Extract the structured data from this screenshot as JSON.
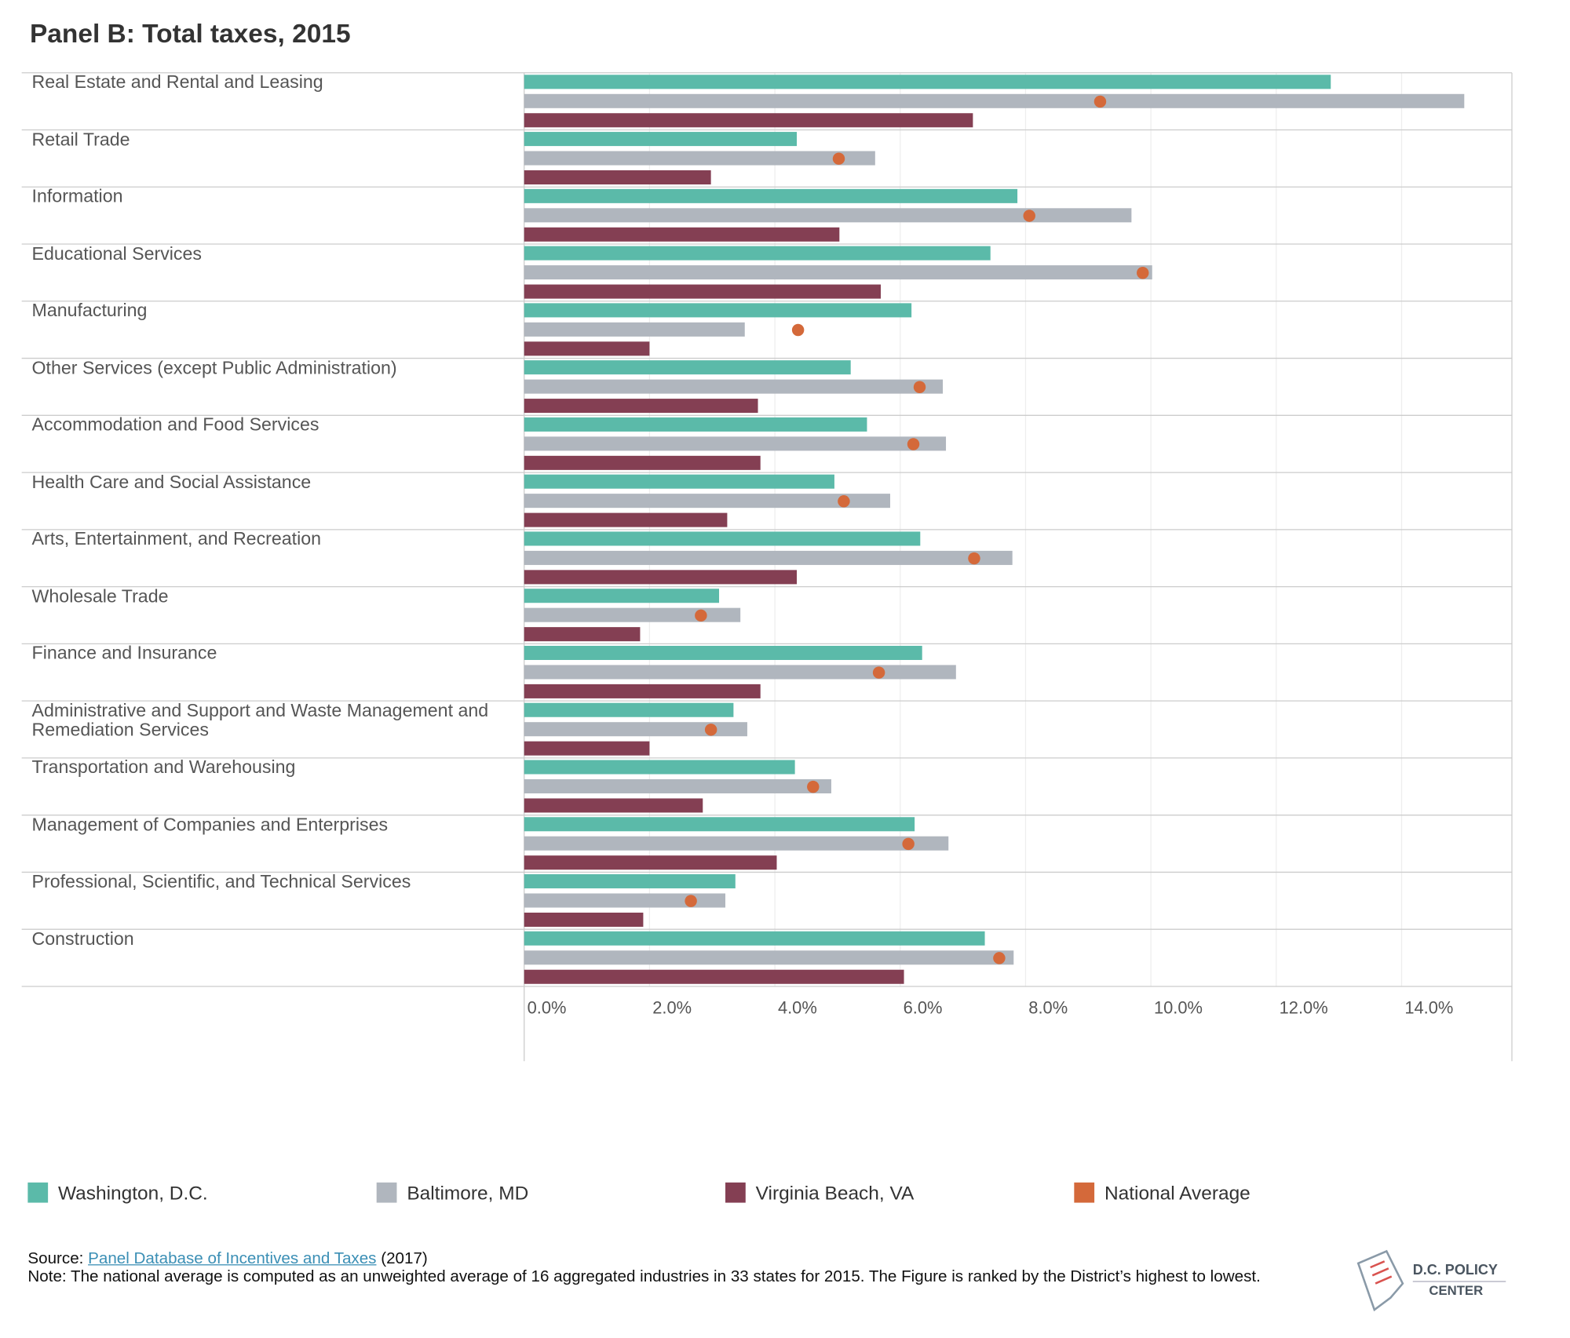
{
  "chart_data": {
    "type": "bar",
    "orientation": "horizontal",
    "title": "Panel B: Total taxes, 2015",
    "categories": [
      "Real Estate and Rental and Leasing",
      "Retail Trade",
      "Information",
      "Educational Services",
      "Manufacturing",
      "Other Services (except Public Administration)",
      "Accommodation and Food Services",
      "Health Care and Social Assistance",
      "Arts, Entertainment, and Recreation",
      "Wholesale Trade",
      "Finance and Insurance",
      "Administrative and Support and Waste Management and Remediation Services",
      "Transportation and Warehousing",
      "Management of Companies and Enterprises",
      "Professional, Scientific, and Technical Services",
      "Construction"
    ],
    "series": [
      {
        "name": "Washington, D.C.",
        "color": "#5bbaa9",
        "values": [
          12.87,
          4.35,
          7.87,
          7.44,
          6.18,
          5.21,
          5.47,
          4.95,
          6.32,
          3.11,
          6.35,
          3.34,
          4.32,
          6.23,
          3.37,
          7.35
        ]
      },
      {
        "name": "Baltimore, MD",
        "color": "#b0b6be",
        "values": [
          15.0,
          5.6,
          9.69,
          10.02,
          3.52,
          6.68,
          6.73,
          5.84,
          7.79,
          3.45,
          6.89,
          3.56,
          4.9,
          6.77,
          3.21,
          7.81
        ]
      },
      {
        "name": "Virginia Beach, VA",
        "color": "#843f53",
        "values": [
          7.16,
          2.98,
          5.03,
          5.69,
          2.0,
          3.73,
          3.77,
          3.24,
          4.35,
          1.85,
          3.77,
          2.0,
          2.85,
          4.03,
          1.9,
          6.06
        ]
      },
      {
        "name": "National Average",
        "color": "#d4693a",
        "style": "dot",
        "values": [
          9.19,
          5.02,
          8.06,
          9.87,
          4.37,
          6.31,
          6.21,
          5.1,
          7.18,
          2.82,
          5.66,
          2.98,
          4.61,
          6.13,
          2.66,
          7.58
        ]
      }
    ],
    "xlim": [
      0,
      15.76
    ],
    "xticks": [
      {
        "value": 0,
        "label": "0.0%"
      },
      {
        "value": 2,
        "label": "2.0%"
      },
      {
        "value": 4,
        "label": "4.0%"
      },
      {
        "value": 6,
        "label": "6.0%"
      },
      {
        "value": 8,
        "label": "8.0%"
      },
      {
        "value": 10,
        "label": "10.0%"
      },
      {
        "value": 12,
        "label": "12.0%"
      },
      {
        "value": 14,
        "label": "14.0%"
      }
    ],
    "grid": true
  },
  "source": {
    "prefix": "Source: ",
    "link": "Panel Database of Incentives and Taxes",
    "suffix": " (2017)"
  },
  "note": "Note: The national average is computed as an unweighted average of 16 aggregated industries in 33 states for 2015. The Figure is ranked by the District’s highest to lowest.",
  "logo": {
    "line1": "D.C. POLICY",
    "line2": "CENTER"
  }
}
